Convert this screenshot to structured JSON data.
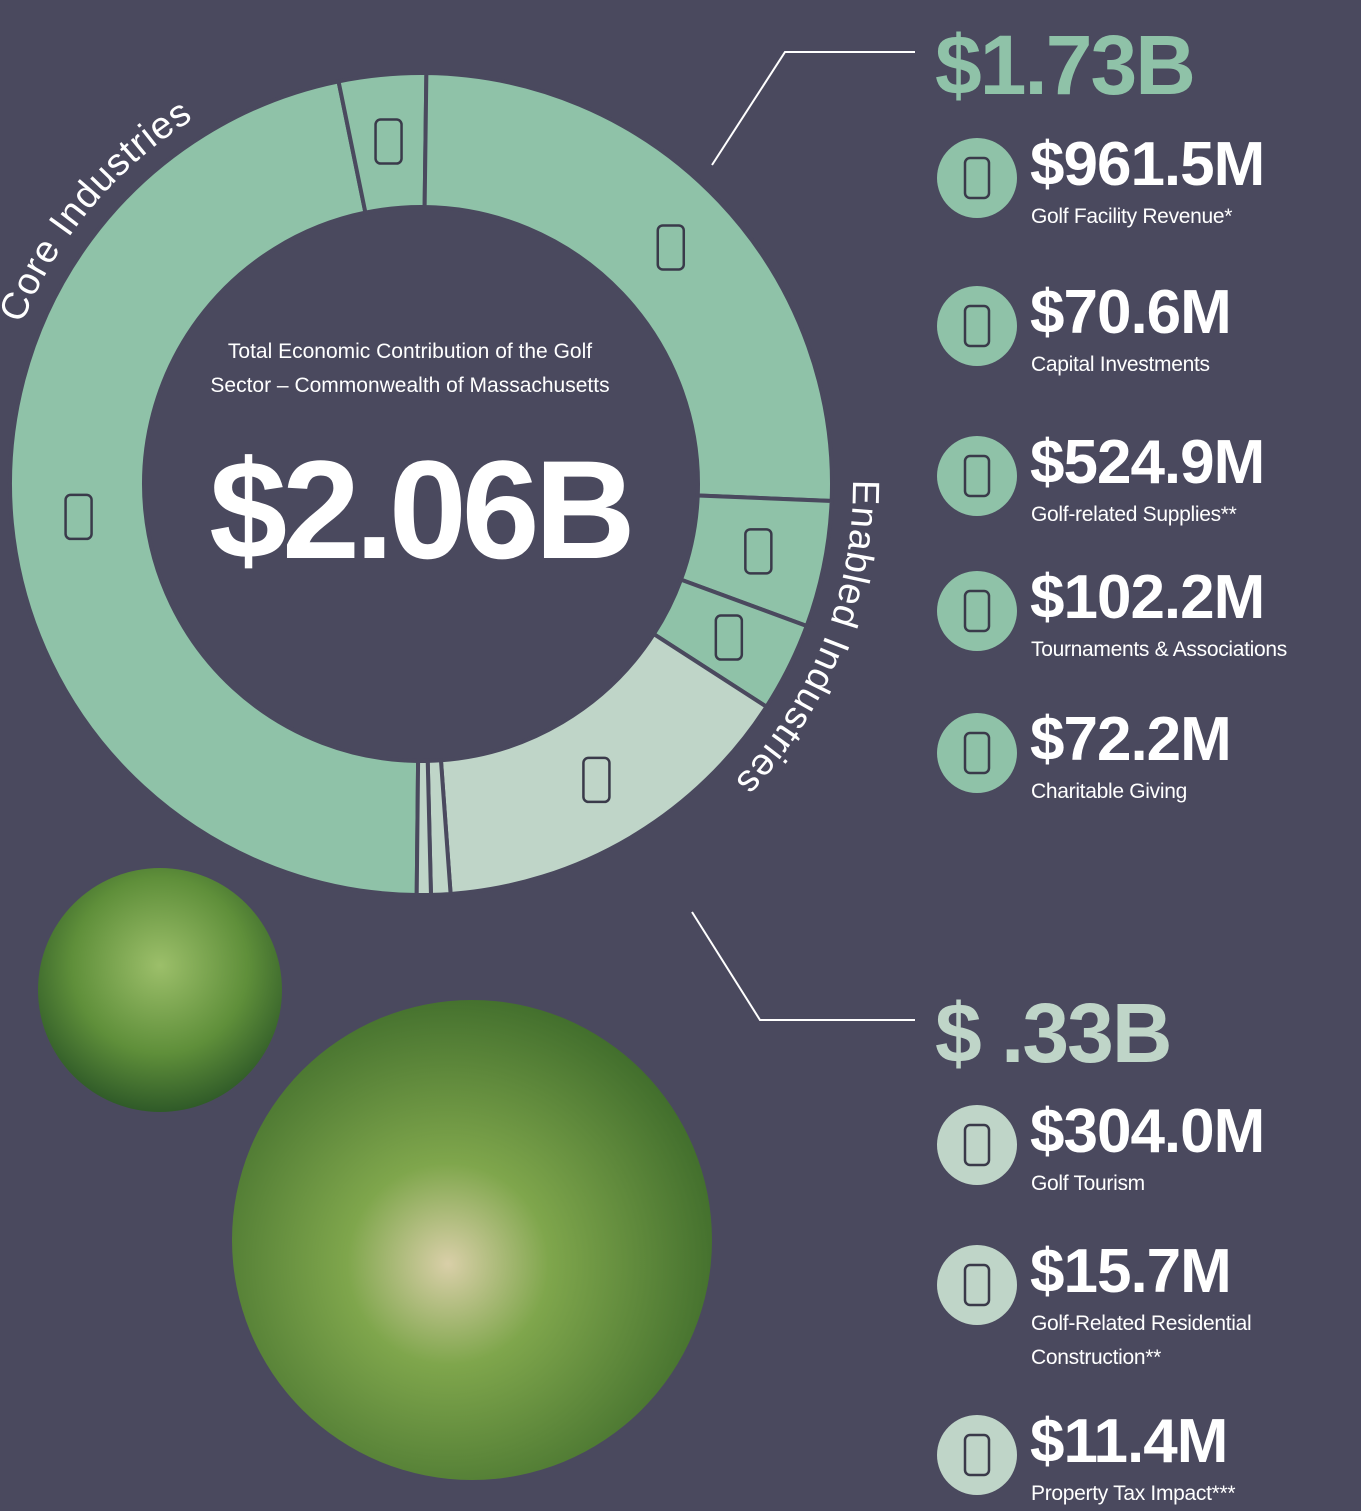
{
  "chart_data": {
    "type": "donut",
    "title": "Total Economic Contribution of the Golf Sector – Commonwealth of Massachusetts",
    "total_label": "$2.06B",
    "groups": [
      {
        "name": "Core Industries",
        "total_label": "$1.73B",
        "color": "#8fc2a8",
        "categories": [
          "Golf Facility Revenue*",
          "Capital Investments",
          "Golf-related Supplies**",
          "Tournaments & Associations",
          "Charitable Giving"
        ],
        "values": [
          961.5,
          70.6,
          524.9,
          102.2,
          72.2
        ],
        "value_labels": [
          "$961.5M",
          "$70.6M",
          "$524.9M",
          "$102.2M",
          "$72.2M"
        ]
      },
      {
        "name": "Enabled Industries",
        "total_label": "$ .33B",
        "color": "#bfd5c8",
        "categories": [
          "Golf Tourism",
          "Golf-Related Residential Construction**",
          "Property Tax Impact***"
        ],
        "values": [
          304,
          15.7,
          11.4
        ],
        "value_labels": [
          "$304.0M",
          "$15.7M",
          "$11.4M"
        ]
      }
    ]
  }
}
